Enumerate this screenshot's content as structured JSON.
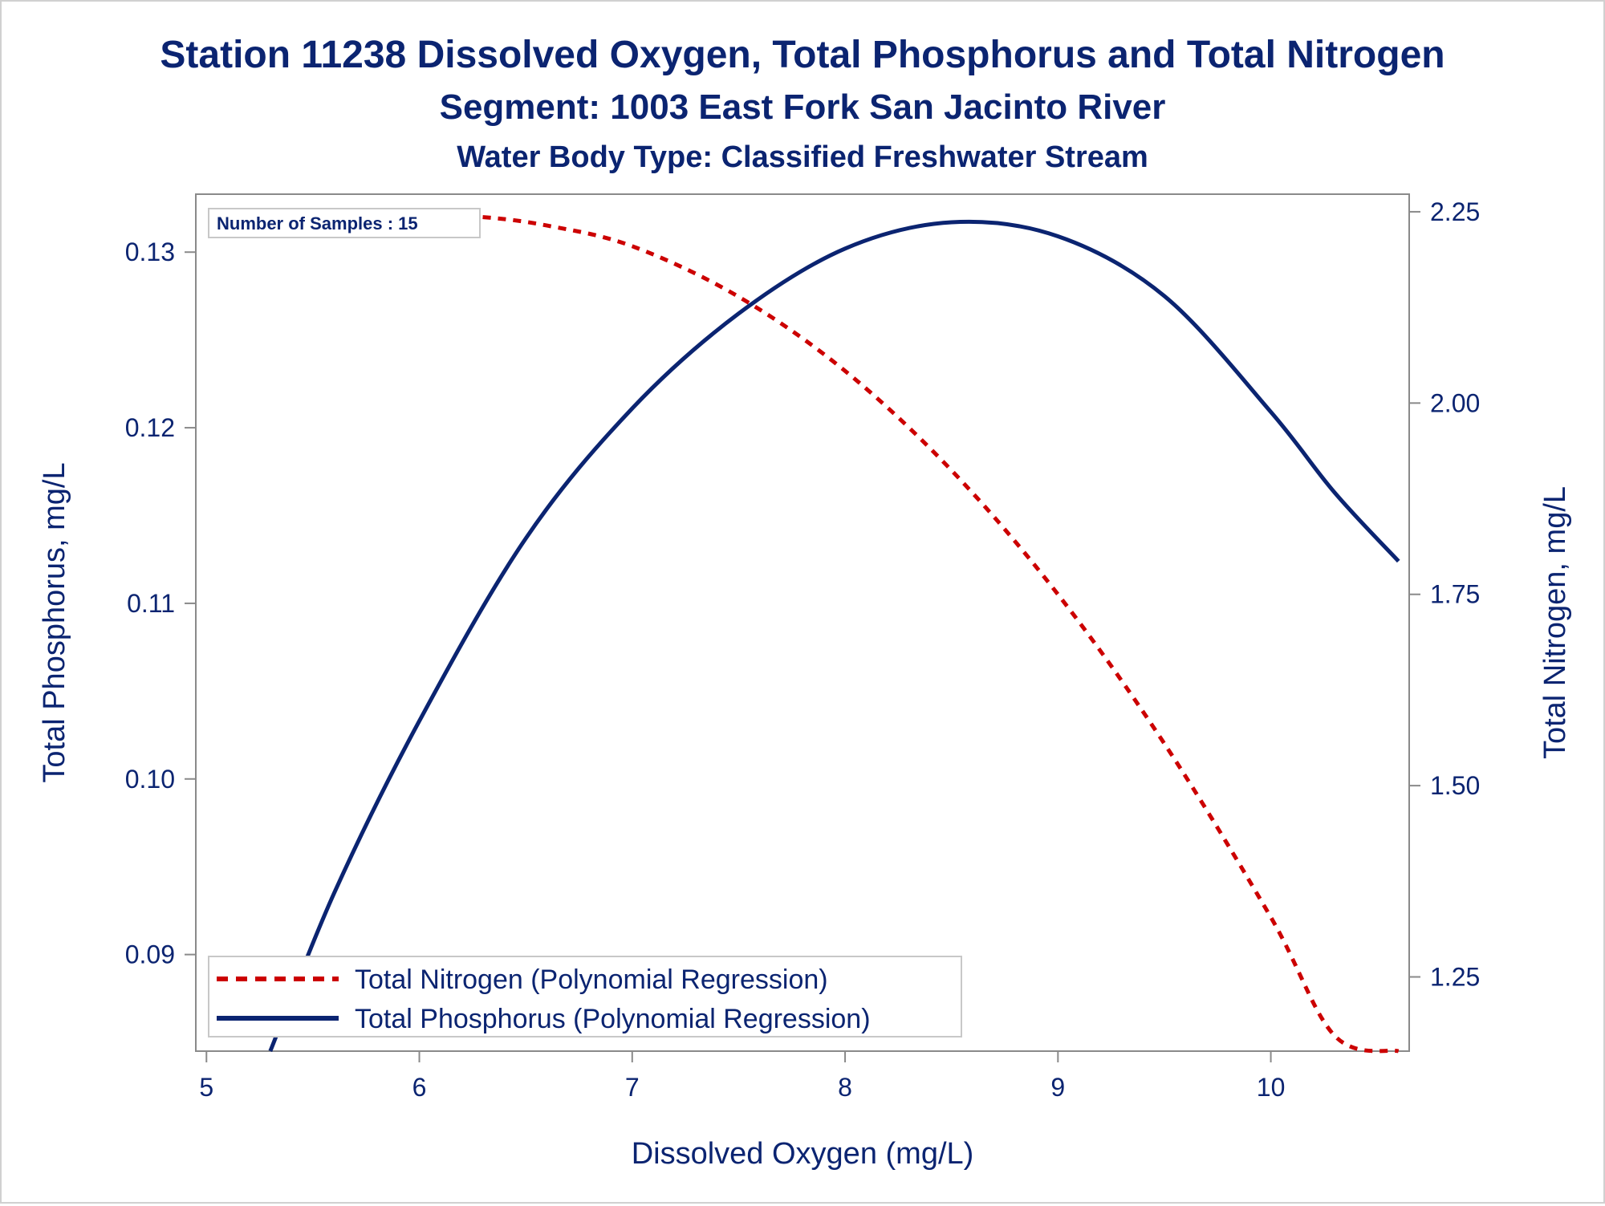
{
  "title": "Station 11238  Dissolved Oxygen, Total Phosphorus and Total Nitrogen",
  "subtitle": "Segment: 1003  East Fork San Jacinto River",
  "subtitle2": "Water Body Type: Classified Freshwater Stream",
  "inset_label": "Number of Samples : 15",
  "colors": {
    "text": "#0b2471",
    "nitrogen": "#cc0000",
    "phosphorus": "#0b2471",
    "axis": "#8a8a8a"
  },
  "chart_data": {
    "type": "line",
    "title": "Station 11238  Dissolved Oxygen, Total Phosphorus and Total Nitrogen",
    "xlabel": "Dissolved Oxygen (mg/L)",
    "ylabel": "Total Phosphorus, mg/L",
    "y2label": "Total Nitrogen, mg/L",
    "xlim": [
      4.95,
      10.65
    ],
    "ylim": [
      0.0845,
      0.1333
    ],
    "y2lim": [
      1.153,
      2.273
    ],
    "xticks": [
      5,
      6,
      7,
      8,
      9,
      10
    ],
    "xtick_labels": [
      "5",
      "6",
      "7",
      "8",
      "9",
      "10"
    ],
    "yticks": [
      0.09,
      0.1,
      0.11,
      0.12,
      0.13
    ],
    "ytick_labels": [
      "0.09",
      "0.10",
      "0.11",
      "0.12",
      "0.13"
    ],
    "y2ticks": [
      1.25,
      1.5,
      1.75,
      2.0,
      2.25
    ],
    "y2tick_labels": [
      "1.25",
      "1.50",
      "1.75",
      "2.00",
      "2.25"
    ],
    "grid": false,
    "legend_position": "bottom-left",
    "series": [
      {
        "name": "Total Nitrogen (Polynomial Regression)",
        "axis": "right",
        "style": "dashed",
        "x": [
          5.3,
          5.6,
          6.0,
          6.3,
          6.6,
          7.0,
          7.5,
          8.0,
          8.5,
          9.0,
          9.5,
          10.0,
          10.3,
          10.6
        ],
        "y": [
          2.227,
          2.24,
          2.246,
          2.243,
          2.232,
          2.205,
          2.139,
          2.042,
          1.912,
          1.75,
          1.555,
          1.328,
          1.173,
          1.153
        ]
      },
      {
        "name": "Total Phosphorus (Polynomial Regression)",
        "axis": "left",
        "style": "solid",
        "x": [
          5.3,
          5.6,
          6.0,
          6.5,
          7.0,
          7.5,
          8.0,
          8.5,
          9.0,
          9.5,
          10.0,
          10.3,
          10.6
        ],
        "y": [
          0.0845,
          0.0935,
          0.1033,
          0.1137,
          0.1211,
          0.1265,
          0.1302,
          0.1317,
          0.1309,
          0.1275,
          0.1209,
          0.1163,
          0.1124
        ]
      }
    ]
  }
}
